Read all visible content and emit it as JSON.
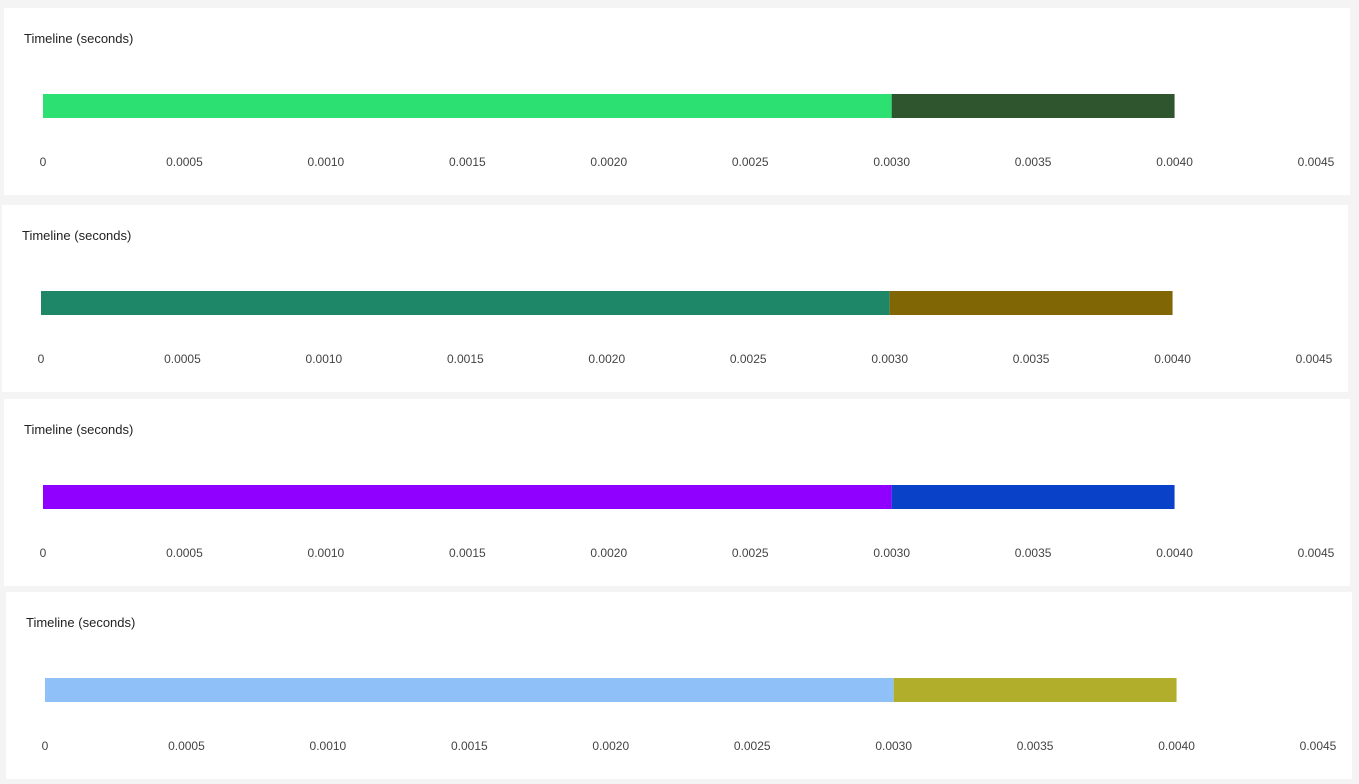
{
  "chart_data": [
    {
      "type": "bar",
      "orientation": "horizontal-stacked",
      "title": "Timeline (seconds)",
      "xlim": [
        0,
        0.0045
      ],
      "ticks": [
        "0",
        "0.0005",
        "0.0010",
        "0.0015",
        "0.0020",
        "0.0025",
        "0.0030",
        "0.0035",
        "0.0040",
        "0.0045"
      ],
      "segments": [
        {
          "start": 0,
          "end": 0.003,
          "color": "#2de072"
        },
        {
          "start": 0.003,
          "end": 0.004,
          "color": "#2e552d"
        }
      ]
    },
    {
      "type": "bar",
      "orientation": "horizontal-stacked",
      "title": "Timeline (seconds)",
      "xlim": [
        0,
        0.0045
      ],
      "ticks": [
        "0",
        "0.0005",
        "0.0010",
        "0.0015",
        "0.0020",
        "0.0025",
        "0.0030",
        "0.0035",
        "0.0040",
        "0.0045"
      ],
      "segments": [
        {
          "start": 0,
          "end": 0.003,
          "color": "#1d8767"
        },
        {
          "start": 0.003,
          "end": 0.004,
          "color": "#816605"
        }
      ]
    },
    {
      "type": "bar",
      "orientation": "horizontal-stacked",
      "title": "Timeline (seconds)",
      "xlim": [
        0,
        0.0045
      ],
      "ticks": [
        "0",
        "0.0005",
        "0.0010",
        "0.0015",
        "0.0020",
        "0.0025",
        "0.0030",
        "0.0035",
        "0.0040",
        "0.0045"
      ],
      "segments": [
        {
          "start": 0,
          "end": 0.003,
          "color": "#8f00ff"
        },
        {
          "start": 0.003,
          "end": 0.004,
          "color": "#0a41c9"
        }
      ]
    },
    {
      "type": "bar",
      "orientation": "horizontal-stacked",
      "title": "Timeline (seconds)",
      "xlim": [
        0,
        0.0045
      ],
      "ticks": [
        "0",
        "0.0005",
        "0.0010",
        "0.0015",
        "0.0020",
        "0.0025",
        "0.0030",
        "0.0035",
        "0.0040",
        "0.0045"
      ],
      "segments": [
        {
          "start": 0,
          "end": 0.003,
          "color": "#90c0f8"
        },
        {
          "start": 0.003,
          "end": 0.004,
          "color": "#b1ae2c"
        }
      ]
    }
  ]
}
